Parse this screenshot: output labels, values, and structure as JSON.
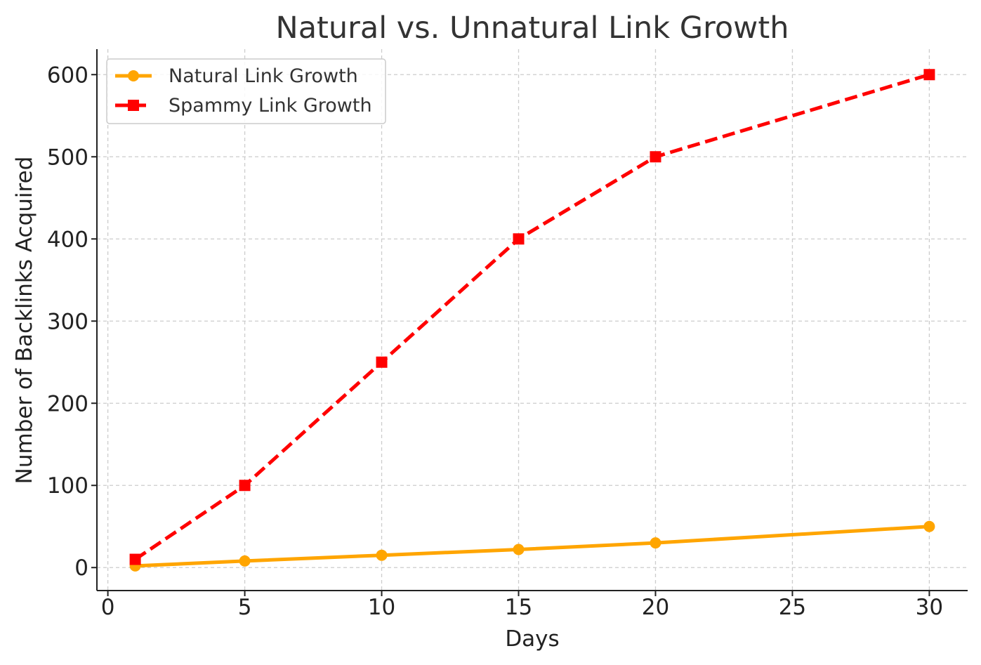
{
  "chart_data": {
    "type": "line",
    "title": "Natural vs. Unnatural Link Growth",
    "xlabel": "Days",
    "ylabel": "Number of Backlinks Acquired",
    "x": [
      1,
      5,
      10,
      15,
      20,
      30
    ],
    "xlim": [
      -0.4,
      31.4
    ],
    "ylim": [
      -28,
      631
    ],
    "xticks": [
      0,
      5,
      10,
      15,
      20,
      25,
      30
    ],
    "yticks": [
      0,
      100,
      200,
      300,
      400,
      500,
      600
    ],
    "grid": true,
    "legend_position": "upper-left",
    "series": [
      {
        "name": "Natural Link Growth",
        "values": [
          2,
          8,
          15,
          22,
          30,
          50
        ],
        "color": "#FFA500",
        "line_style": "solid",
        "marker": "circle"
      },
      {
        "name": "Spammy Link Growth",
        "values": [
          10,
          100,
          250,
          400,
          500,
          600
        ],
        "color": "#FF0000",
        "line_style": "dashed",
        "marker": "square"
      }
    ]
  }
}
